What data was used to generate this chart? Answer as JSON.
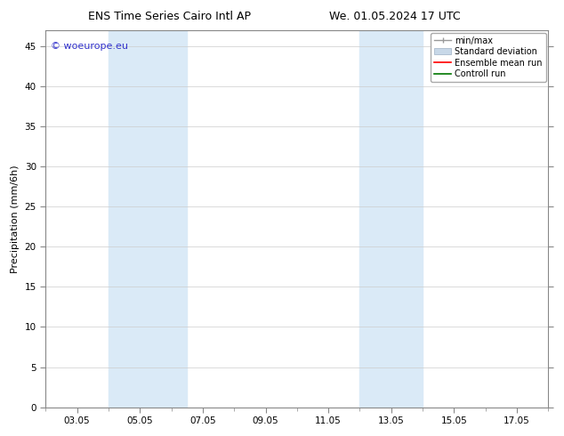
{
  "title_left": "ENS Time Series Cairo Intl AP",
  "title_right": "We. 01.05.2024 17 UTC",
  "ylabel": "Precipitation (mm/6h)",
  "ylim": [
    0,
    47
  ],
  "yticks": [
    0,
    5,
    10,
    15,
    20,
    25,
    30,
    35,
    40,
    45
  ],
  "xtick_labels": [
    "03.05",
    "05.05",
    "07.05",
    "09.05",
    "11.05",
    "13.05",
    "15.05",
    "17.05"
  ],
  "xtick_positions": [
    2,
    4,
    6,
    8,
    10,
    12,
    14,
    16
  ],
  "xlim": [
    1,
    17
  ],
  "shaded_bands": [
    {
      "x_start": 3.0,
      "x_end": 5.5
    },
    {
      "x_start": 11.0,
      "x_end": 13.0
    }
  ],
  "band_color": "#daeaf7",
  "background_color": "#ffffff",
  "plot_bg_color": "#ffffff",
  "watermark_text": "© woeurope.eu",
  "watermark_color": "#3333cc",
  "legend_items": [
    {
      "label": "min/max",
      "color": "#999999"
    },
    {
      "label": "Standard deviation",
      "color": "#c8d8e8"
    },
    {
      "label": "Ensemble mean run",
      "color": "#ff0000"
    },
    {
      "label": "Controll run",
      "color": "#007700"
    }
  ],
  "font_size_title": 9,
  "font_size_axis": 7.5,
  "font_size_legend": 7,
  "font_size_watermark": 8,
  "font_size_ylabel": 8
}
